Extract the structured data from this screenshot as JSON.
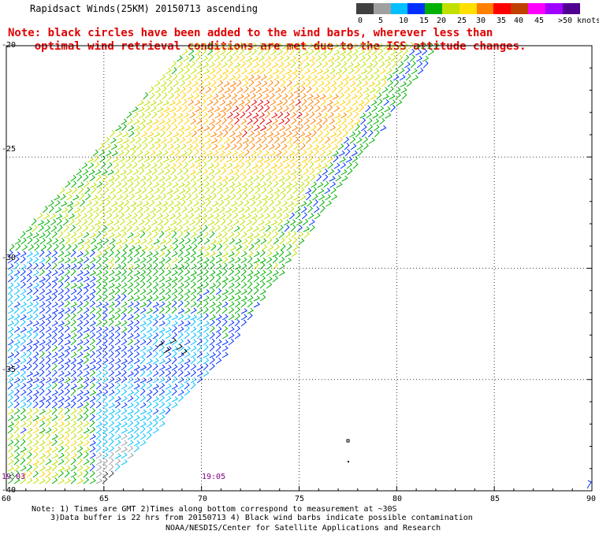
{
  "title": "Rapidsact Winds(25KM) 20150713 ascending",
  "note_lines": [
    "Note: black circles have been added to the wind barbs, wherever less than",
    "    optimal wind retrieval conditions are met due to the ISS attitude changes."
  ],
  "colorbar": {
    "labels": [
      "0",
      "5",
      "10",
      "15",
      "20",
      "25",
      "30",
      "35",
      "40",
      "45",
      ">50 knots"
    ],
    "colors": [
      "#404040",
      "#a0a0a0",
      "#00c0ff",
      "#0030ff",
      "#00b000",
      "#c0e000",
      "#ffe000",
      "#ff8000",
      "#ff0000",
      "#c04000",
      "#ff00ff",
      "#a000ff",
      "#500090"
    ]
  },
  "map": {
    "lat_labels": [
      "-20",
      "-25",
      "-30",
      "-35",
      "-40"
    ],
    "lon_labels": [
      "60",
      "65",
      "70",
      "75",
      "80",
      "85",
      "90"
    ],
    "lat_range": [
      -40,
      -20
    ],
    "lon_range": [
      60,
      90
    ],
    "grid": true
  },
  "time_labels": [
    "19:03",
    "19:05"
  ],
  "footer": {
    "line1": "Note: 1) Times are GMT 2)Times along bottom correspond to measurement at ~30S",
    "line2": "3)Data buffer is 22 hrs from 20150713 4) Black wind barbs indicate possible contamination",
    "line3": "NOAA/NESDIS/Center for Satellite Applications and Research"
  }
}
